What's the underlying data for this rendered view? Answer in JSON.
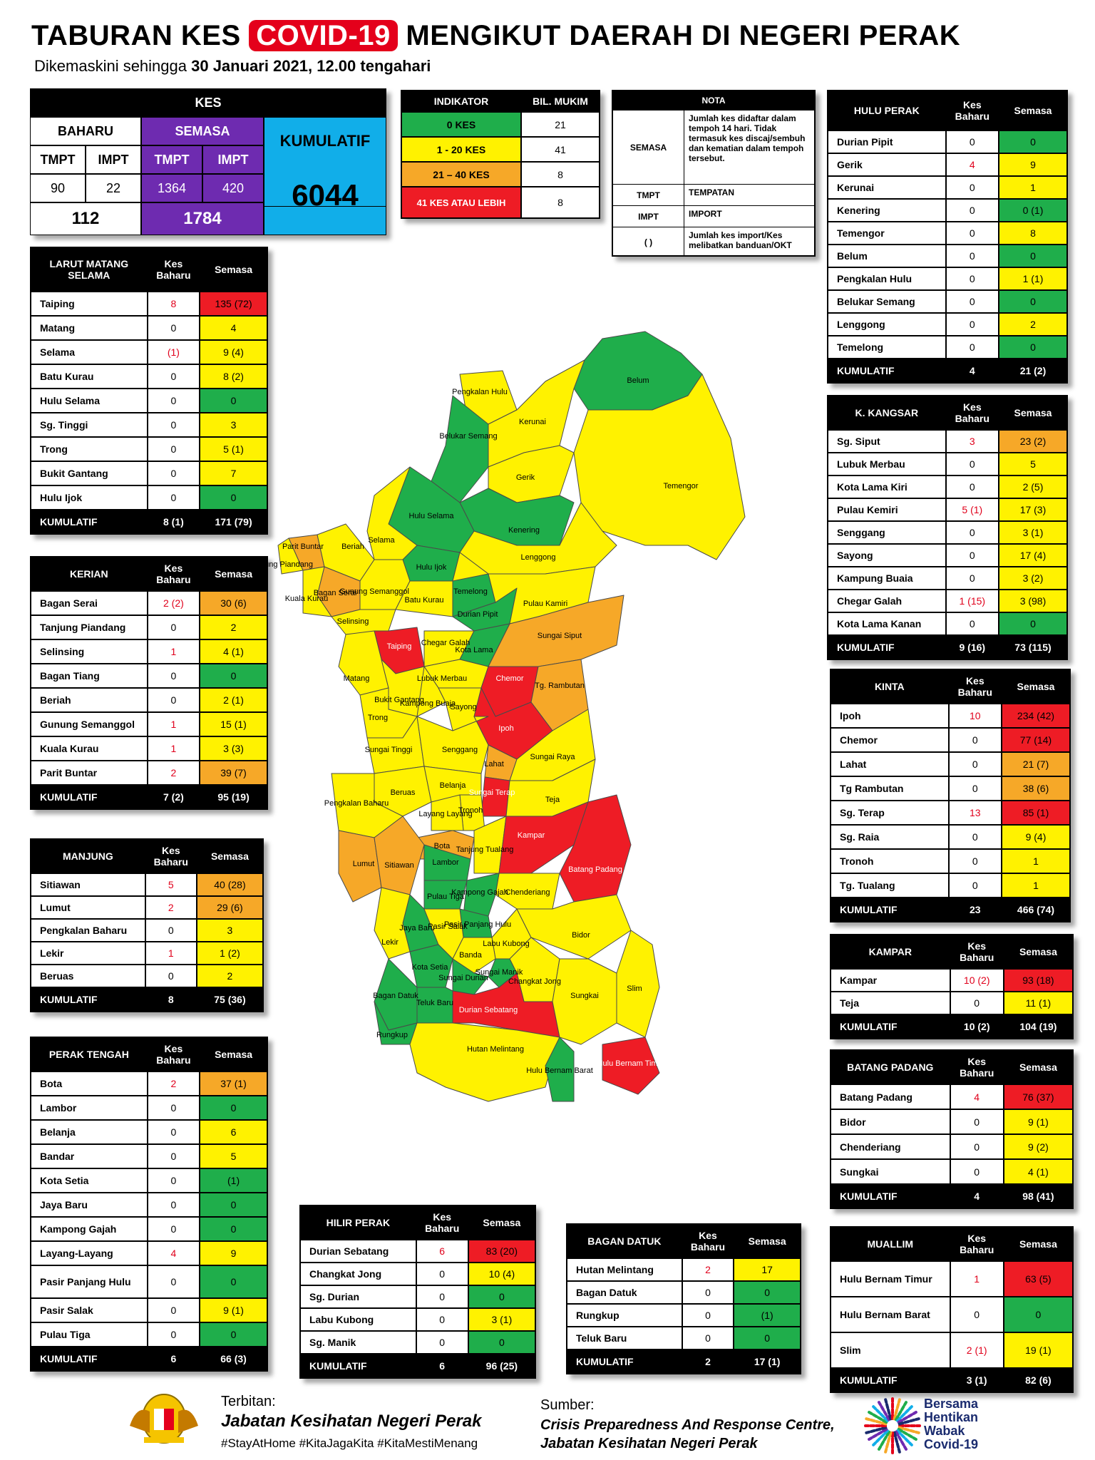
{
  "header": {
    "title_pre": "TABURAN KES ",
    "title_covid": "COVID-19",
    "title_post": " MENGIKUT DAERAH DI NEGERI PERAK",
    "subtitle_pre": "Dikemaskini sehingga ",
    "subtitle_bold": "30 Januari 2021, 12.00 tengahari"
  },
  "kes": {
    "title": "KES",
    "baharu": "BAHARU",
    "semasa": "SEMASA",
    "kumulatif": "KUMULATIF",
    "tmpt": "TMPT",
    "impt": "IMPT",
    "baharu_tmpt": "90",
    "baharu_impt": "22",
    "semasa_tmpt": "1364",
    "semasa_impt": "420",
    "baharu_total": "112",
    "semasa_total": "1784",
    "kumulatif_total": "6044"
  },
  "indikator": {
    "col1": "INDIKATOR",
    "col2": "BIL. MUKIM",
    "rows": [
      {
        "label": "0 KES",
        "count": "21",
        "color": "#1fae4b"
      },
      {
        "label": "1 - 20 KES",
        "count": "41",
        "color": "#fff200"
      },
      {
        "label": "21 – 40 KES",
        "count": "8",
        "color": "#f6a828"
      },
      {
        "label": "41 KES ATAU LEBIH",
        "count": "8",
        "color": "#ee1c25"
      }
    ]
  },
  "nota": {
    "title": "NOTA",
    "rows": [
      {
        "k": "SEMASA",
        "v": "Jumlah kes didaftar dalam tempoh 14 hari. Tidak termasuk kes discaj/sembuh dan kematian dalam tempoh tersebut."
      },
      {
        "k": "TMPT",
        "v": "TEMPATAN"
      },
      {
        "k": "IMPT",
        "v": "IMPORT"
      },
      {
        "k": "( )",
        "v": "Jumlah kes import/Kes melibatkan banduan/OKT"
      }
    ]
  },
  "col_kes_baharu": "Kes Baharu",
  "col_semasa": "Semasa",
  "total_label": "KUMULATIF",
  "districts": {
    "larut": {
      "title": "LARUT MATANG SELAMA",
      "rows": [
        {
          "n": "Taiping",
          "b": "8",
          "s": "135 (72)",
          "c": "r",
          "br": true
        },
        {
          "n": "Matang",
          "b": "0",
          "s": "4",
          "c": "y"
        },
        {
          "n": "Selama",
          "b": "(1)",
          "s": "9 (4)",
          "c": "y",
          "br": true
        },
        {
          "n": "Batu Kurau",
          "b": "0",
          "s": "8 (2)",
          "c": "y"
        },
        {
          "n": "Hulu Selama",
          "b": "0",
          "s": "0",
          "c": "g"
        },
        {
          "n": "Sg. Tinggi",
          "b": "0",
          "s": "3",
          "c": "y"
        },
        {
          "n": "Trong",
          "b": "0",
          "s": "5 (1)",
          "c": "y"
        },
        {
          "n": "Bukit Gantang",
          "b": "0",
          "s": "7",
          "c": "y"
        },
        {
          "n": "Hulu Ijok",
          "b": "0",
          "s": "0",
          "c": "g"
        }
      ],
      "tb": "8 (1)",
      "ts": "171 (79)"
    },
    "kerian": {
      "title": "KERIAN",
      "rows": [
        {
          "n": "Bagan Serai",
          "b": "2 (2)",
          "s": "30 (6)",
          "c": "o",
          "br": true
        },
        {
          "n": "Tanjung Piandang",
          "b": "0",
          "s": "2",
          "c": "y"
        },
        {
          "n": "Selinsing",
          "b": "1",
          "s": "4 (1)",
          "c": "y",
          "br": true
        },
        {
          "n": "Bagan Tiang",
          "b": "0",
          "s": "0",
          "c": "g"
        },
        {
          "n": "Beriah",
          "b": "0",
          "s": "2 (1)",
          "c": "y"
        },
        {
          "n": "Gunung Semanggol",
          "b": "1",
          "s": "15 (1)",
          "c": "y",
          "br": true
        },
        {
          "n": "Kuala Kurau",
          "b": "1",
          "s": "3 (3)",
          "c": "y",
          "br": true
        },
        {
          "n": "Parit Buntar",
          "b": "2",
          "s": "39 (7)",
          "c": "o",
          "br": true
        }
      ],
      "tb": "7 (2)",
      "ts": "95 (19)"
    },
    "manjung": {
      "title": "MANJUNG",
      "rows": [
        {
          "n": "Sitiawan",
          "b": "5",
          "s": "40 (28)",
          "c": "o",
          "br": true
        },
        {
          "n": "Lumut",
          "b": "2",
          "s": "29 (6)",
          "c": "o",
          "br": true
        },
        {
          "n": "Pengkalan Baharu",
          "b": "0",
          "s": "3",
          "c": "y"
        },
        {
          "n": "Lekir",
          "b": "1",
          "s": "1 (2)",
          "c": "y",
          "br": true
        },
        {
          "n": "Beruas",
          "b": "0",
          "s": "2",
          "c": "y"
        }
      ],
      "tb": "8",
      "ts": "75 (36)"
    },
    "perak_tengah": {
      "title": "PERAK TENGAH",
      "rows": [
        {
          "n": "Bota",
          "b": "2",
          "s": "37 (1)",
          "c": "o",
          "br": true
        },
        {
          "n": "Lambor",
          "b": "0",
          "s": "0",
          "c": "g"
        },
        {
          "n": "Belanja",
          "b": "0",
          "s": "6",
          "c": "y"
        },
        {
          "n": "Bandar",
          "b": "0",
          "s": "5",
          "c": "y"
        },
        {
          "n": "Kota Setia",
          "b": "0",
          "s": "(1)",
          "c": "g"
        },
        {
          "n": "Jaya Baru",
          "b": "0",
          "s": "0",
          "c": "g"
        },
        {
          "n": "Kampong Gajah",
          "b": "0",
          "s": "0",
          "c": "g"
        },
        {
          "n": "Layang-Layang",
          "b": "4",
          "s": "9",
          "c": "y",
          "br": true
        },
        {
          "n": "Pasir Panjang Hulu",
          "b": "0",
          "s": "0",
          "c": "g"
        },
        {
          "n": "Pasir Salak",
          "b": "0",
          "s": "9 (1)",
          "c": "y"
        },
        {
          "n": "Pulau Tiga",
          "b": "0",
          "s": "0",
          "c": "g"
        }
      ],
      "tb": "6",
      "ts": "66 (3)"
    },
    "hilir_perak": {
      "title": "HILIR PERAK",
      "rows": [
        {
          "n": "Durian Sebatang",
          "b": "6",
          "s": "83 (20)",
          "c": "r",
          "br": true
        },
        {
          "n": "Changkat Jong",
          "b": "0",
          "s": "10 (4)",
          "c": "y"
        },
        {
          "n": "Sg. Durian",
          "b": "0",
          "s": "0",
          "c": "g"
        },
        {
          "n": "Labu Kubong",
          "b": "0",
          "s": "3 (1)",
          "c": "y"
        },
        {
          "n": "Sg. Manik",
          "b": "0",
          "s": "0",
          "c": "g"
        }
      ],
      "tb": "6",
      "ts": "96 (25)"
    },
    "bagan_datuk": {
      "title": "BAGAN DATUK",
      "rows": [
        {
          "n": "Hutan Melintang",
          "b": "2",
          "s": "17",
          "c": "y",
          "br": true
        },
        {
          "n": "Bagan Datuk",
          "b": "0",
          "s": "0",
          "c": "g"
        },
        {
          "n": "Rungkup",
          "b": "0",
          "s": "(1)",
          "c": "g"
        },
        {
          "n": "Teluk Baru",
          "b": "0",
          "s": "0",
          "c": "g"
        }
      ],
      "tb": "2",
      "ts": "17 (1)"
    },
    "hulu_perak": {
      "title": "HULU PERAK",
      "rows": [
        {
          "n": "Durian Pipit",
          "b": "0",
          "s": "0",
          "c": "g"
        },
        {
          "n": "Gerik",
          "b": "4",
          "s": "9",
          "c": "y",
          "br": true
        },
        {
          "n": "Kerunai",
          "b": "0",
          "s": "1",
          "c": "y"
        },
        {
          "n": "Kenering",
          "b": "0",
          "s": "0 (1)",
          "c": "g"
        },
        {
          "n": "Temengor",
          "b": "0",
          "s": "8",
          "c": "y"
        },
        {
          "n": "Belum",
          "b": "0",
          "s": "0",
          "c": "g"
        },
        {
          "n": "Pengkalan Hulu",
          "b": "0",
          "s": "1 (1)",
          "c": "y"
        },
        {
          "n": "Belukar Semang",
          "b": "0",
          "s": "0",
          "c": "g"
        },
        {
          "n": "Lenggong",
          "b": "0",
          "s": "2",
          "c": "y"
        },
        {
          "n": "Temelong",
          "b": "0",
          "s": "0",
          "c": "g"
        }
      ],
      "tb": "4",
      "ts": "21 (2)"
    },
    "kangsar": {
      "title": "K. KANGSAR",
      "rows": [
        {
          "n": "Sg. Siput",
          "b": "3",
          "s": "23 (2)",
          "c": "o",
          "br": true
        },
        {
          "n": "Lubuk Merbau",
          "b": "0",
          "s": "5",
          "c": "y"
        },
        {
          "n": "Kota Lama Kiri",
          "b": "0",
          "s": "2 (5)",
          "c": "y"
        },
        {
          "n": "Pulau Kemiri",
          "b": "5 (1)",
          "s": "17 (3)",
          "c": "y",
          "br": true
        },
        {
          "n": "Senggang",
          "b": "0",
          "s": "3 (1)",
          "c": "y"
        },
        {
          "n": "Sayong",
          "b": "0",
          "s": "17 (4)",
          "c": "y"
        },
        {
          "n": "Kampung Buaia",
          "b": "0",
          "s": "3 (2)",
          "c": "y"
        },
        {
          "n": "Chegar Galah",
          "b": "1 (15)",
          "s": "3 (98)",
          "c": "y",
          "br": true
        },
        {
          "n": "Kota Lama Kanan",
          "b": "0",
          "s": "0",
          "c": "g"
        }
      ],
      "tb": "9 (16)",
      "ts": "73 (115)"
    },
    "kinta": {
      "title": "KINTA",
      "rows": [
        {
          "n": "Ipoh",
          "b": "10",
          "s": "234 (42)",
          "c": "r",
          "br": true
        },
        {
          "n": "Chemor",
          "b": "0",
          "s": "77 (14)",
          "c": "r"
        },
        {
          "n": "Lahat",
          "b": "0",
          "s": "21 (7)",
          "c": "o"
        },
        {
          "n": "Tg Rambutan",
          "b": "0",
          "s": "38 (6)",
          "c": "o"
        },
        {
          "n": "Sg. Terap",
          "b": "13",
          "s": "85 (1)",
          "c": "r",
          "br": true
        },
        {
          "n": "Sg. Raia",
          "b": "0",
          "s": "9 (4)",
          "c": "y"
        },
        {
          "n": "Tronoh",
          "b": "0",
          "s": "1",
          "c": "y"
        },
        {
          "n": "Tg. Tualang",
          "b": "0",
          "s": "1",
          "c": "y"
        }
      ],
      "tb": "23",
      "ts": "466 (74)"
    },
    "kampar": {
      "title": "KAMPAR",
      "rows": [
        {
          "n": "Kampar",
          "b": "10 (2)",
          "s": "93 (18)",
          "c": "r",
          "br": true
        },
        {
          "n": "Teja",
          "b": "0",
          "s": "11 (1)",
          "c": "y"
        }
      ],
      "tb": "10 (2)",
      "ts": "104 (19)"
    },
    "batang_padang": {
      "title": "BATANG PADANG",
      "rows": [
        {
          "n": "Batang Padang",
          "b": "4",
          "s": "76 (37)",
          "c": "r",
          "br": true
        },
        {
          "n": "Bidor",
          "b": "0",
          "s": "9 (1)",
          "c": "y"
        },
        {
          "n": "Chenderiang",
          "b": "0",
          "s": "9 (2)",
          "c": "y"
        },
        {
          "n": "Sungkai",
          "b": "0",
          "s": "4 (1)",
          "c": "y"
        }
      ],
      "tb": "4",
      "ts": "98 (41)"
    },
    "muallim": {
      "title": "MUALLIM",
      "rows": [
        {
          "n": "Hulu Bernam Timur",
          "b": "1",
          "s": "63 (5)",
          "c": "r",
          "br": true
        },
        {
          "n": "Hulu Bernam Barat",
          "b": "0",
          "s": "0",
          "c": "g"
        },
        {
          "n": "Slim",
          "b": "2 (1)",
          "s": "19 (1)",
          "c": "y",
          "br": true
        }
      ],
      "tb": "3 (1)",
      "ts": "82 (6)"
    }
  },
  "map_labels": {
    "belum": "Belum",
    "pengkalan_hulu": "Pengkalan Hulu",
    "belukar_semang": "Belukar Semang",
    "kerunai": "Kerunai",
    "gerik": "Gerik",
    "temengor": "Temengor",
    "kenering": "Kenering",
    "hulu_selama": "Hulu Selama",
    "selama": "Selama",
    "hulu_ijok": "Hulu Ijok",
    "lenggong": "Lenggong",
    "parit_buntar": "Parit Buntar",
    "tanjung_piandang": "Tanjung Piandang",
    "beriah": "Beriah",
    "bagan_serai": "Bagan Serai",
    "kuala_kurau": "Kuala Kurau",
    "gunung_semanggol": "Gunung Semanggol",
    "batu_kurau": "Batu Kurau",
    "temelong": "Temelong",
    "durian_pipit": "Durian Pipit",
    "pulau_kemiri": "Pulau Kamiri",
    "selinsing": "Selinsing",
    "chegar_galah": "Chegar Galah",
    "taiping": "Taiping",
    "matang": "Matang",
    "lubuk_merbau": "Lubuk Merbau",
    "kota_lama": "Kota Lama",
    "sungai_siput": "Sungai Siput",
    "bukit_gantang": "Bukit Gantang",
    "kampong_buaja": "Kampong Buaja",
    "sayong": "Sayong",
    "trong": "Trong",
    "chemor": "Chemor",
    "tg_rambutan": "Tg. Rambutan",
    "sungai_tinggi": "Sungai Tinggi",
    "senggang": "Senggang",
    "ipoh": "Ipoh",
    "lahat": "Lahat",
    "sungai_raya": "Sungai Raya",
    "sungai_terap": "Sungai Terap",
    "teja": "Teja",
    "beruas": "Beruas",
    "belanja": "Belanja",
    "pengkalan_baharu": "Pengkalan Baharu",
    "tronoh": "Tronoh",
    "layang": "Layang Layang",
    "kampar": "Kampar",
    "bota": "Bota",
    "tanjung_tualang": "Tanjung Tualang",
    "lumut": "Lumut",
    "sitiawan": "Sitiawan",
    "lambor": "Lambor",
    "batang_padang": "Batang Padang",
    "chenderiang": "Chenderiang",
    "pulau_tiga": "Pulau Tiga",
    "kampong_gajah": "Kampong Gajah",
    "pasir_panjang": "Pasir Panjang Hulu",
    "jaya_baru": "Jaya Baru",
    "pasir_salak": "Pasir Salak",
    "labu_kubong": "Labu Kubong",
    "bidor": "Bidor",
    "banda": "Banda",
    "lekir": "Lekir",
    "kota_setia": "Kota Setia",
    "sungai_manik": "Sungai Manik",
    "sungai_durian": "Sungai Durian",
    "changkat_jong": "Changkat Jong",
    "bagan_datuk": "Bagan Datuk",
    "teluk_baru": "Teluk Baru",
    "durian_sebatang": "Durian Sebatang",
    "sungkai": "Sungkai",
    "rungkup": "Rungkup",
    "slim": "Slim",
    "hutan_melintang": "Hutan Melintang",
    "hulu_bernam_barat": "Hulu Bernam Barat",
    "hulu_bernam_timur": "Hulu Bernam Timur"
  },
  "footer": {
    "terbitan": "Terbitan:",
    "publisher": "Jabatan Kesihatan Negeri Perak",
    "hashtags": "#StayAtHome #KitaJagaKita #KitaMestiMenang",
    "sumber": "Sumber:",
    "source1": "Crisis Preparedness And Response Centre,",
    "source2": "Jabatan Kesihatan Negeri Perak",
    "campaign": [
      "Bersama",
      "Hentikan",
      "Wabak",
      "Covid-19"
    ]
  }
}
